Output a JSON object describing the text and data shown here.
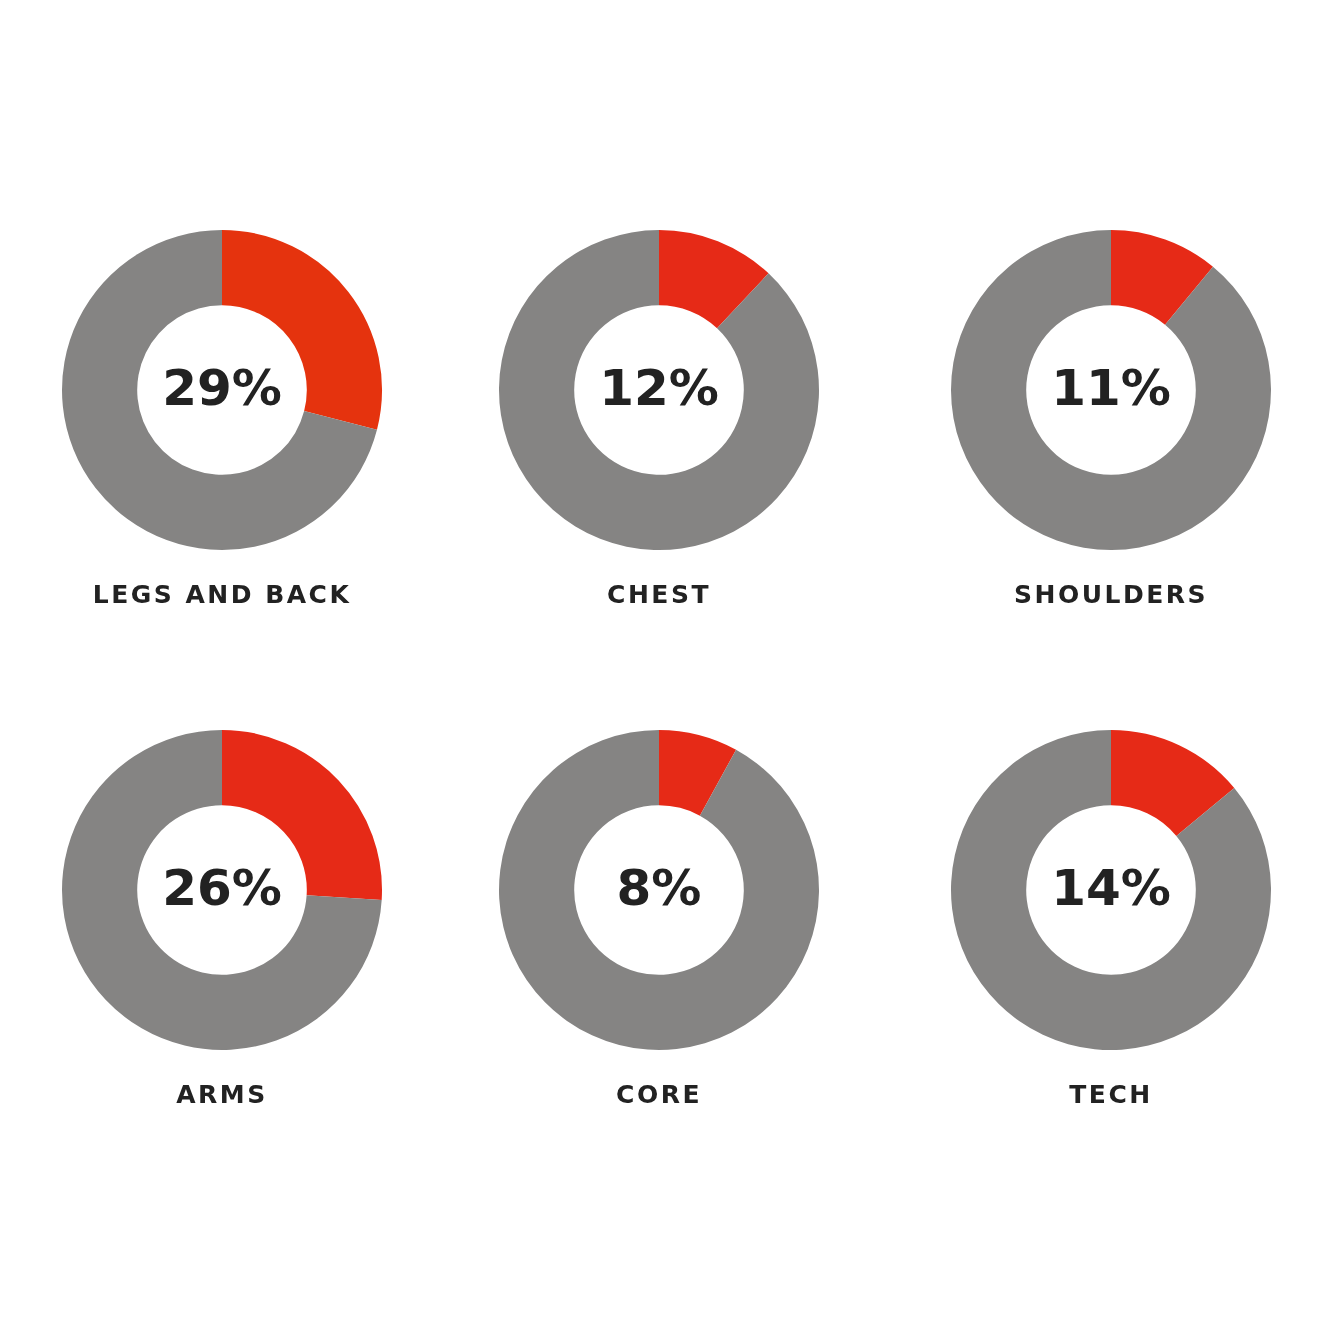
{
  "chart_data": [
    {
      "type": "donut",
      "title": "LEGS AND BACK",
      "categories": [
        null,
        null
      ],
      "values": [
        29,
        71
      ],
      "colors": [
        "#e5330e",
        "#858483"
      ],
      "value_labels": [
        "29%",
        null
      ]
    },
    {
      "type": "donut",
      "title": "CHEST",
      "categories": [
        null,
        null
      ],
      "values": [
        12,
        88
      ],
      "colors": [
        "#e62a17",
        "#858483"
      ],
      "value_labels": [
        "12%",
        null
      ]
    },
    {
      "type": "donut",
      "title": "SHOULDERS",
      "categories": [
        null,
        null
      ],
      "values": [
        11,
        89
      ],
      "colors": [
        "#e62a17",
        "#858483"
      ],
      "value_labels": [
        "11%",
        null
      ]
    },
    {
      "type": "donut",
      "title": "ARMS",
      "categories": [
        null,
        null
      ],
      "values": [
        26,
        74
      ],
      "colors": [
        "#e62a17",
        "#858483"
      ],
      "value_labels": [
        "26%",
        null
      ]
    },
    {
      "type": "donut",
      "title": "CORE",
      "categories": [
        null,
        null
      ],
      "values": [
        8,
        92
      ],
      "colors": [
        "#e62a17",
        "#858483"
      ],
      "value_labels": [
        "8%",
        null
      ]
    },
    {
      "type": "donut",
      "title": "TECH",
      "categories": [
        null,
        null
      ],
      "values": [
        14,
        86
      ],
      "colors": [
        "#e62a17",
        "#858483"
      ],
      "value_labels": [
        "14%",
        null
      ]
    }
  ]
}
